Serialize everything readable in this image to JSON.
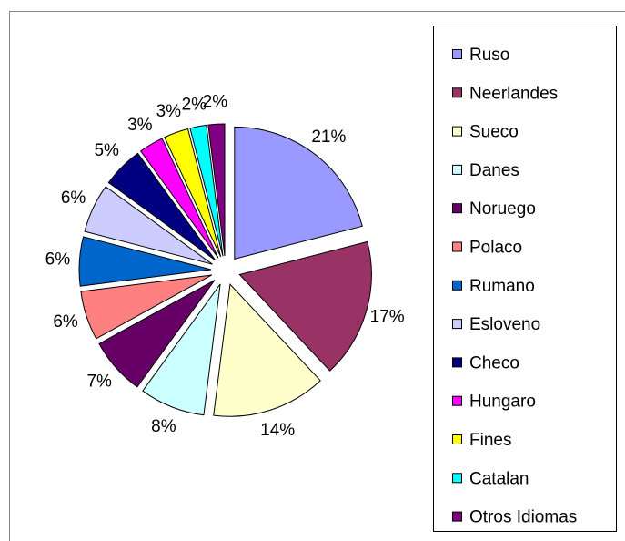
{
  "chart_data": {
    "type": "pie",
    "categories": [
      "Ruso",
      "Neerlandes",
      "Sueco",
      "Danes",
      "Noruego",
      "Polaco",
      "Rumano",
      "Esloveno",
      "Checo",
      "Hungaro",
      "Fines",
      "Catalan",
      "Otros Idiomas"
    ],
    "values": [
      21,
      17,
      14,
      8,
      7,
      6,
      6,
      6,
      5,
      3,
      3,
      2,
      2
    ],
    "value_labels": [
      "21%",
      "17%",
      "14%",
      "8%",
      "7%",
      "6%",
      "6%",
      "6%",
      "5%",
      "3%",
      "3%",
      "2%",
      "2%"
    ],
    "colors": [
      "#9999ff",
      "#993366",
      "#ffffcc",
      "#ccffff",
      "#660066",
      "#ff8080",
      "#0066cc",
      "#ccccff",
      "#000080",
      "#ff00ff",
      "#ffff00",
      "#00ffff",
      "#800080"
    ],
    "legend": "right"
  }
}
